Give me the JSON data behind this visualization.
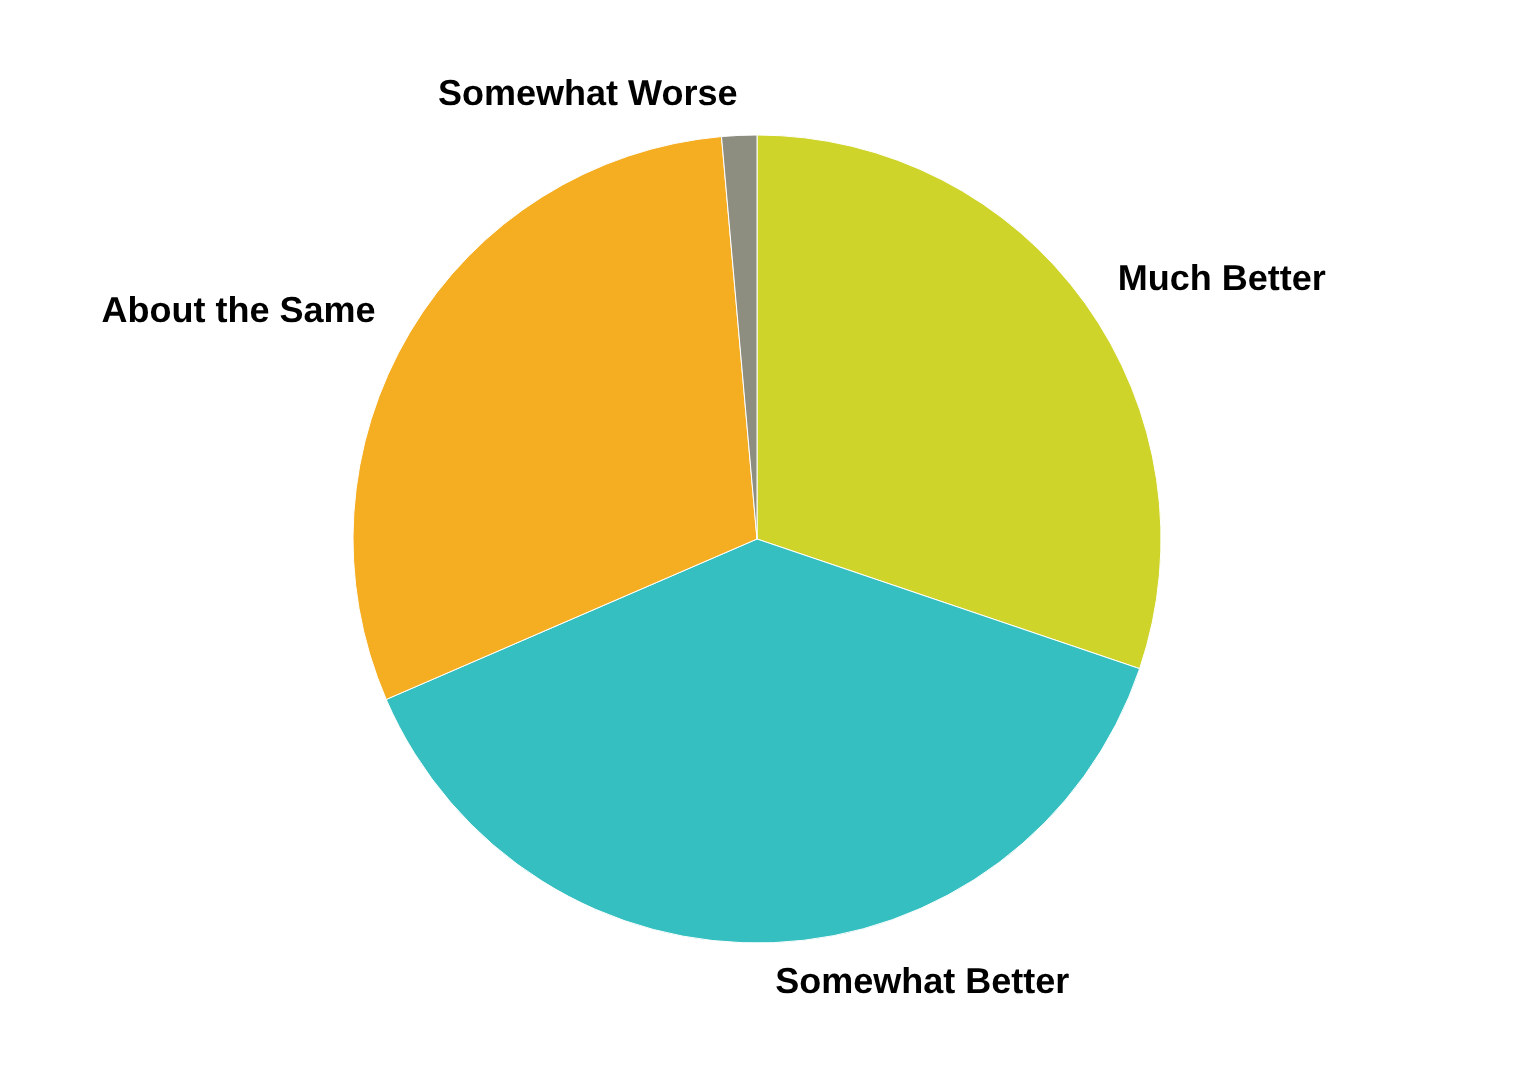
{
  "chart_data": {
    "type": "pie",
    "categories": [
      "Much Better",
      "Somewhat Better",
      "About the Same",
      "Somewhat Worse"
    ],
    "values": [
      30.2,
      38.3,
      30.1,
      1.4
    ],
    "colors": [
      "#cfd42a",
      "#35bfc0",
      "#f5ae22",
      "#8e8e80"
    ]
  }
}
